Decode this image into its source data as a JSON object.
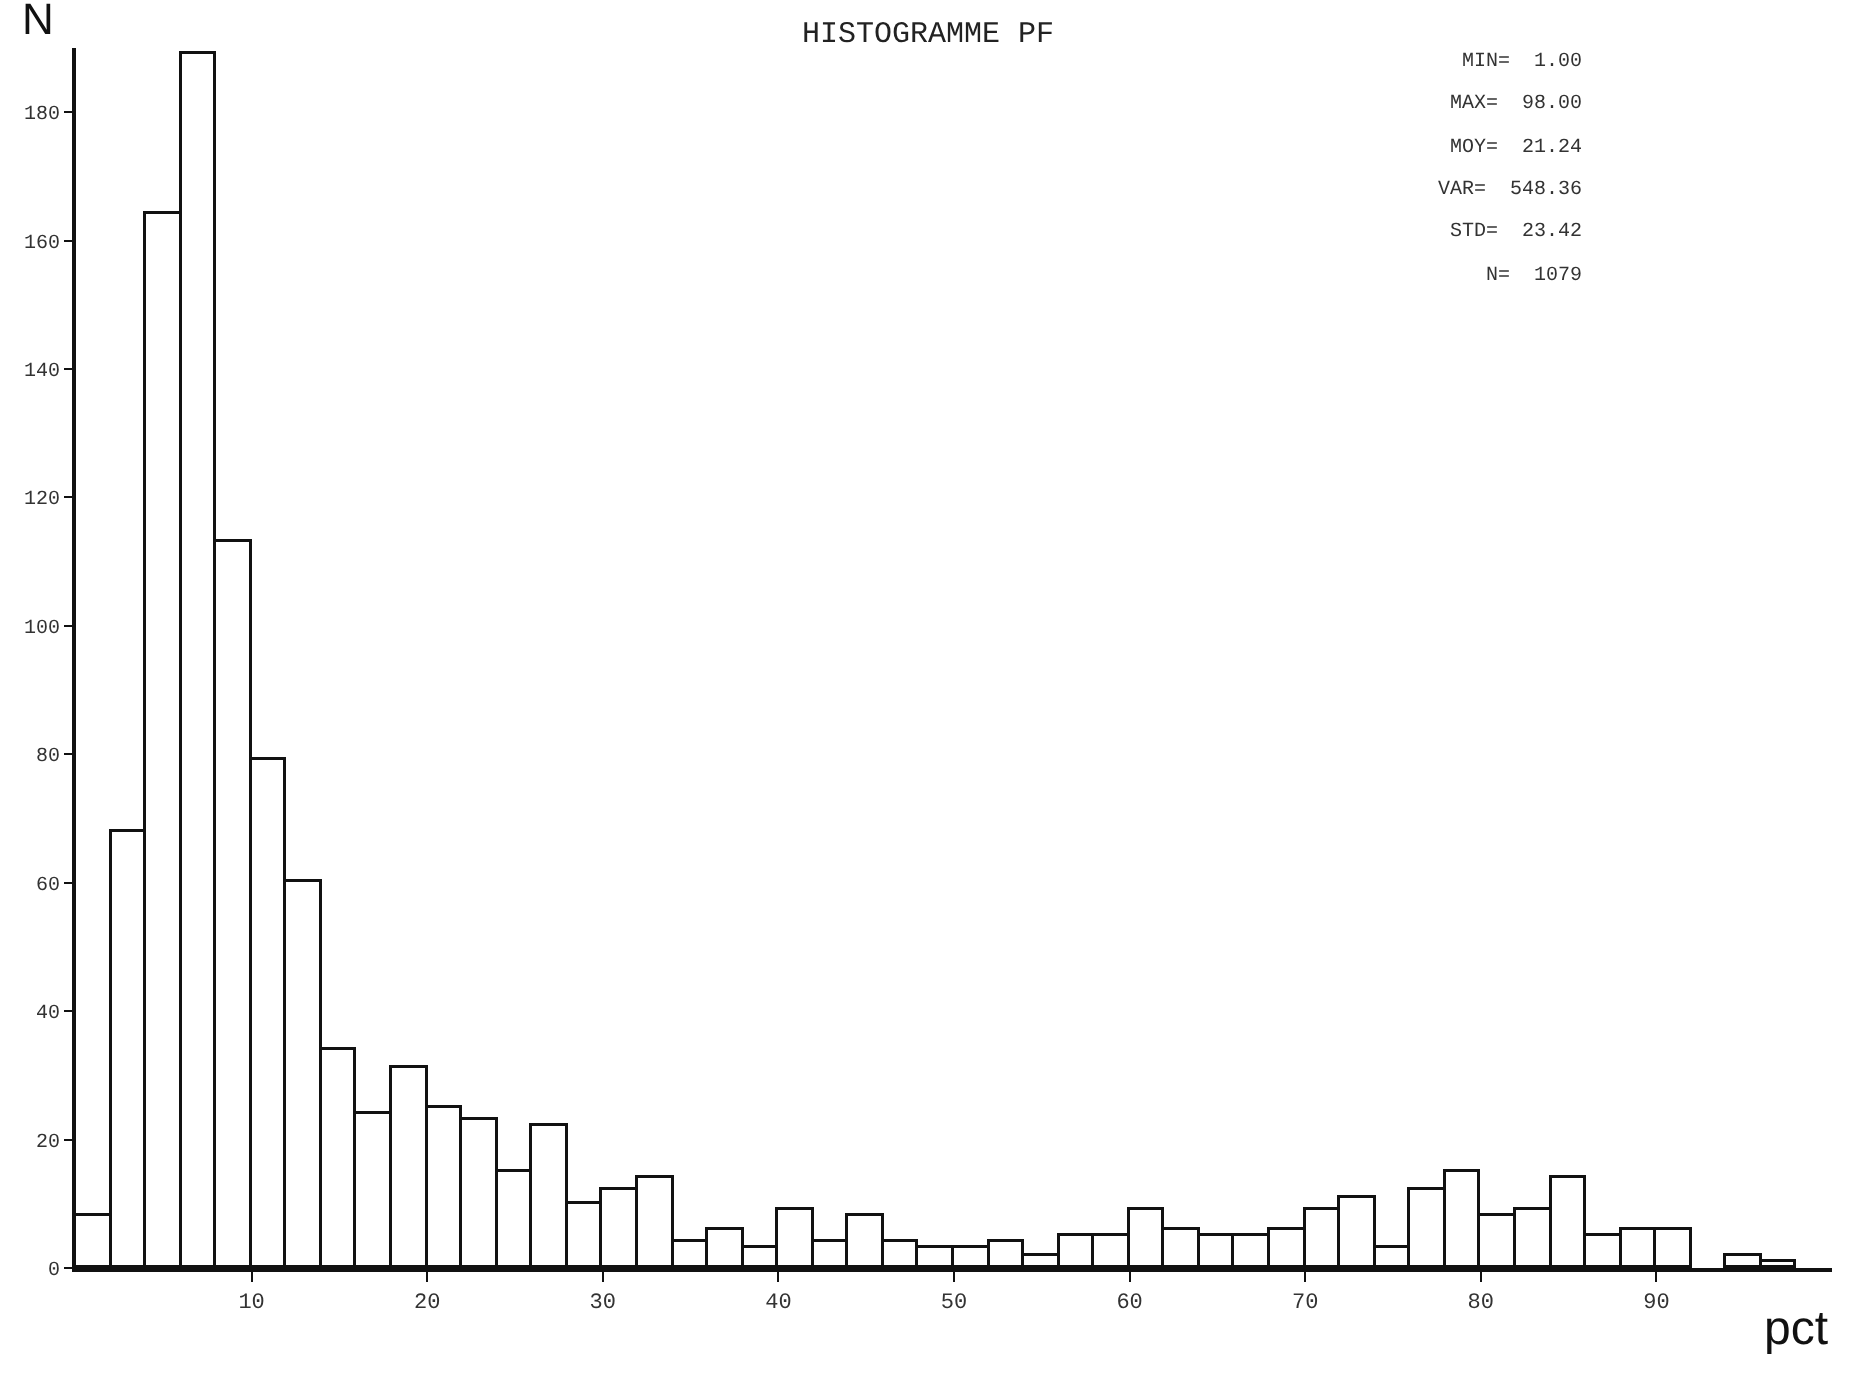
{
  "chart_data": {
    "type": "histogram",
    "title": "HISTOGRAMME PF",
    "xlabel": "pct",
    "ylabel": "N",
    "bins": [
      0,
      2,
      4,
      6,
      8,
      10,
      12,
      14,
      16,
      18,
      20,
      22,
      24,
      26,
      28,
      30,
      32,
      34,
      36,
      38,
      40,
      42,
      44,
      46,
      48,
      50,
      52,
      54,
      56,
      58,
      60,
      62,
      64,
      66,
      68,
      70,
      72,
      74,
      76,
      78,
      80,
      82,
      84,
      86,
      88,
      90,
      92,
      94,
      96,
      98,
      100
    ],
    "values": [
      8,
      68,
      164,
      189,
      113,
      79,
      60,
      34,
      24,
      31,
      25,
      23,
      15,
      22,
      10,
      12,
      14,
      4,
      6,
      3,
      9,
      4,
      8,
      4,
      3,
      3,
      4,
      2,
      5,
      5,
      9,
      6,
      5,
      5,
      6,
      9,
      11,
      3,
      12,
      15,
      8,
      9,
      14,
      5,
      6,
      6,
      0,
      2,
      1,
      0
    ],
    "color": "#ffffff",
    "xlim": [
      0,
      100
    ],
    "xticks": [
      10,
      20,
      30,
      40,
      50,
      60,
      70,
      80,
      90
    ],
    "ylim": [
      0,
      190
    ],
    "yticks": [
      0,
      20,
      40,
      60,
      80,
      100,
      120,
      140,
      160,
      180
    ],
    "grid": false,
    "annotations": [
      "MIN=  1.00",
      "MAX=  98.00",
      "MOY=  21.24",
      "VAR=  548.36",
      "STD=  23.42",
      "N=  1079"
    ]
  }
}
